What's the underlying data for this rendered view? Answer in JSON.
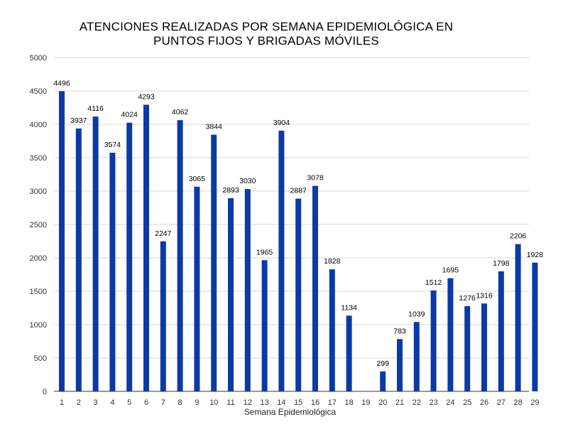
{
  "chart_data": {
    "type": "bar",
    "title_lines": [
      "ATENCIONES REALIZADAS POR SEMANA EPIDEMIOLÓGICA EN",
      "PUNTOS FIJOS Y BRIGADAS MÓVILES"
    ],
    "xlabel": "Semana Epidemiológica",
    "ylabel": "",
    "categories": [
      "1",
      "2",
      "3",
      "4",
      "5",
      "6",
      "7",
      "8",
      "9",
      "10",
      "11",
      "12",
      "13",
      "14",
      "15",
      "16",
      "17",
      "18",
      "19",
      "20",
      "21",
      "22",
      "23",
      "24",
      "25",
      "26",
      "27",
      "28",
      "29"
    ],
    "values": [
      4496,
      3937,
      4116,
      3574,
      4024,
      4293,
      2247,
      4062,
      3065,
      3844,
      2893,
      3030,
      1965,
      3904,
      2887,
      3078,
      1828,
      1134,
      0,
      299,
      783,
      1039,
      1512,
      1695,
      1276,
      1316,
      1798,
      2206,
      1928
    ],
    "data_labels": [
      "4496",
      "3937",
      "4116",
      "3574",
      "4024",
      "4293",
      "2247",
      "4062",
      "3065",
      "3844",
      "2893",
      "3030",
      "1965",
      "3904",
      "2887",
      "3078",
      "1828",
      "1134",
      "",
      "299",
      "783",
      "1039",
      "1512",
      "1695",
      "1276",
      "1316",
      "1798",
      "2206",
      "1928"
    ],
    "ylim": [
      0,
      5000
    ],
    "yticks": [
      "0",
      "500",
      "1000",
      "1500",
      "2000",
      "2500",
      "3000",
      "3500",
      "4000",
      "4500",
      "5000"
    ],
    "grid": true,
    "legend": "none",
    "colors": {
      "bar": "#0b3aa6",
      "grid": "#d9d9d9",
      "axis": "#333333"
    }
  }
}
